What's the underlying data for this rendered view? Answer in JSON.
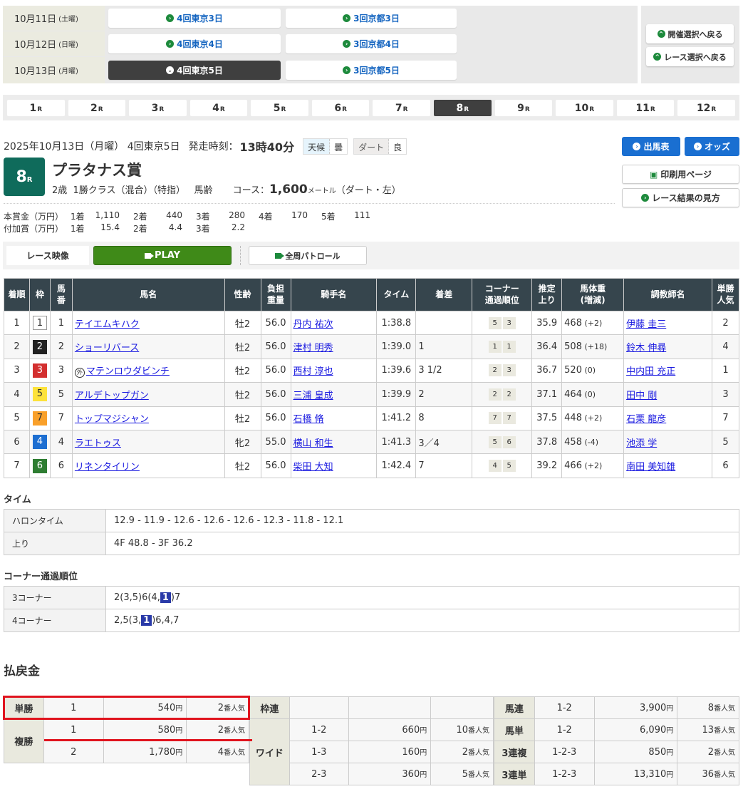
{
  "kaisai": {
    "rows": [
      {
        "date": "10月11日",
        "dow": "(土曜)",
        "venues": [
          "4回東京3日",
          "3回京都3日"
        ],
        "active": -1
      },
      {
        "date": "10月12日",
        "dow": "(日曜)",
        "venues": [
          "4回東京4日",
          "3回京都4日"
        ],
        "active": -1
      },
      {
        "date": "10月13日",
        "dow": "(月曜)",
        "venues": [
          "4回東京5日",
          "3回京都5日"
        ],
        "active": 0
      }
    ],
    "back_kaisai": "開催選択へ戻る",
    "back_race": "レース選択へ戻る"
  },
  "race_tabs": {
    "items": [
      "1",
      "2",
      "3",
      "4",
      "5",
      "6",
      "7",
      "8",
      "9",
      "10",
      "11",
      "12"
    ],
    "suffix": "R",
    "active": "8"
  },
  "race": {
    "date": "2025年10月13日（月曜） 4回東京5日",
    "start_label": "発走時刻：",
    "start_time": "13時40分",
    "weather_label": "天候",
    "weather": "曇",
    "surface_label": "ダート",
    "condition": "良",
    "number": "8",
    "number_suffix": "R",
    "name": "プラタナス賞",
    "conditions": "2歳  1勝クラス（混合）（特指）   馬齢",
    "course_label": "コース：",
    "distance": "1,600",
    "distance_unit": "メートル",
    "course_detail": "（ダート・左）",
    "prize_main": {
      "label": "本賞金（万円）",
      "items": [
        [
          "1着",
          "1,110"
        ],
        [
          "2着",
          "440"
        ],
        [
          "3着",
          "280"
        ],
        [
          "4着",
          "170"
        ],
        [
          "5着",
          "111"
        ]
      ]
    },
    "prize_add": {
      "label": "付加賞（万円）",
      "items": [
        [
          "1着",
          "15.4"
        ],
        [
          "2着",
          "4.4"
        ],
        [
          "3着",
          "2.2"
        ]
      ]
    }
  },
  "side_buttons": {
    "entries": "出馬表",
    "odds": "オッズ",
    "print": "印刷用ページ",
    "howto": "レース結果の見方"
  },
  "video": {
    "label": "レース映像",
    "play": "PLAY",
    "patrol": "全周パトロール"
  },
  "colors": {
    "accent_green": "#0f6b5b",
    "blue": "#1a6fd1",
    "play_green": "#3f8a18",
    "header": "#36454d",
    "highlight": "#e0141e"
  },
  "results": {
    "headers": [
      "着順",
      "枠",
      "馬番",
      "馬名",
      "性齢",
      "負担重量",
      "騎手名",
      "タイム",
      "着差",
      "コーナー通過順位",
      "推定上り",
      "馬体重(増減)",
      "調教師名",
      "単勝人気"
    ],
    "rows": [
      {
        "rank": "1",
        "waku": "1",
        "num": "1",
        "horse": "テイエムキハク",
        "foreign": "",
        "sexage": "牡2",
        "weight": "56.0",
        "jockey": "丹内 祐次",
        "time": "1:38.8",
        "margin": "",
        "corner": [
          "5",
          "3"
        ],
        "last3f": "35.9",
        "body": "468",
        "diff": "(+2)",
        "trainer": "伊藤 圭三",
        "pop": "2"
      },
      {
        "rank": "2",
        "waku": "2",
        "num": "2",
        "horse": "ショーリバース",
        "foreign": "",
        "sexage": "牡2",
        "weight": "56.0",
        "jockey": "津村 明秀",
        "time": "1:39.0",
        "margin": "1",
        "corner": [
          "1",
          "1"
        ],
        "last3f": "36.4",
        "body": "508",
        "diff": "(+18)",
        "trainer": "鈴木 伸尋",
        "pop": "4"
      },
      {
        "rank": "3",
        "waku": "3",
        "num": "3",
        "horse": "マテンロウダビンチ",
        "foreign": "外",
        "sexage": "牡2",
        "weight": "56.0",
        "jockey": "西村 淳也",
        "time": "1:39.6",
        "margin": "3 1/2",
        "corner": [
          "2",
          "3"
        ],
        "last3f": "36.7",
        "body": "520",
        "diff": "(0)",
        "trainer": "中内田 充正",
        "pop": "1"
      },
      {
        "rank": "4",
        "waku": "5",
        "num": "5",
        "horse": "アルデトップガン",
        "foreign": "",
        "sexage": "牡2",
        "weight": "56.0",
        "jockey": "三浦 皇成",
        "time": "1:39.9",
        "margin": "2",
        "corner": [
          "2",
          "2"
        ],
        "last3f": "37.1",
        "body": "464",
        "diff": "(0)",
        "trainer": "田中 剛",
        "pop": "3"
      },
      {
        "rank": "5",
        "waku": "7",
        "num": "7",
        "horse": "トップマジシャン",
        "foreign": "",
        "sexage": "牡2",
        "weight": "56.0",
        "jockey": "石橋 脩",
        "time": "1:41.2",
        "margin": "8",
        "corner": [
          "7",
          "7"
        ],
        "last3f": "37.5",
        "body": "448",
        "diff": "(+2)",
        "trainer": "石栗 龍彦",
        "pop": "7"
      },
      {
        "rank": "6",
        "waku": "4",
        "num": "4",
        "horse": "ラエトゥス",
        "foreign": "",
        "sexage": "牝2",
        "weight": "55.0",
        "jockey": "横山 和生",
        "time": "1:41.3",
        "margin": "3／4",
        "corner": [
          "5",
          "6"
        ],
        "last3f": "37.8",
        "body": "458",
        "diff": "(-4)",
        "trainer": "池添 学",
        "pop": "5"
      },
      {
        "rank": "7",
        "waku": "6",
        "num": "6",
        "horse": "リネンタイリン",
        "foreign": "",
        "sexage": "牡2",
        "weight": "56.0",
        "jockey": "柴田 大知",
        "time": "1:42.4",
        "margin": "7",
        "corner": [
          "4",
          "5"
        ],
        "last3f": "39.2",
        "body": "466",
        "diff": "(+2)",
        "trainer": "南田 美知雄",
        "pop": "6"
      }
    ],
    "waku_colors": {
      "1": [
        "#ffffff",
        "#333333"
      ],
      "2": [
        "#222222",
        "#ffffff"
      ],
      "3": [
        "#d32f2f",
        "#ffffff"
      ],
      "4": [
        "#1e6fd1",
        "#ffffff"
      ],
      "5": [
        "#fde23a",
        "#333333"
      ],
      "6": [
        "#2e7d32",
        "#ffffff"
      ],
      "7": [
        "#f9a02a",
        "#333333"
      ]
    }
  },
  "time_section": {
    "title": "タイム",
    "rows": [
      {
        "label": "ハロンタイム",
        "value": "12.9 - 11.9 - 12.6 - 12.6 - 12.6 - 12.3 - 11.8 - 12.1"
      },
      {
        "label": "上り",
        "value": "4F 48.8 - 3F 36.2"
      }
    ]
  },
  "corner_section": {
    "title": "コーナー通過順位",
    "rows": [
      {
        "label": "3コーナー",
        "before": "2(3,5)6(4,",
        "hl": "1",
        "after": ")7"
      },
      {
        "label": "4コーナー",
        "before": "2,5(3,",
        "hl": "1",
        "after": ")6,4,7"
      }
    ]
  },
  "payout": {
    "title": "払戻金",
    "yen": "円",
    "pop_suffix": "番人気",
    "tansho": {
      "label": "単勝",
      "rows": [
        [
          "1",
          "540",
          "2"
        ]
      ]
    },
    "fukusho": {
      "label": "複勝",
      "rows": [
        [
          "1",
          "580",
          "2"
        ],
        [
          "2",
          "1,780",
          "4"
        ]
      ]
    },
    "wakuren": {
      "label": "枠連"
    },
    "wide": {
      "label": "ワイド",
      "rows": [
        [
          "1-2",
          "660",
          "10"
        ],
        [
          "1-3",
          "160",
          "2"
        ],
        [
          "2-3",
          "360",
          "5"
        ]
      ]
    },
    "right": [
      {
        "label": "馬連",
        "combo": "1-2",
        "amount": "3,900",
        "pop": "8"
      },
      {
        "label": "馬単",
        "combo": "1-2",
        "amount": "6,090",
        "pop": "13"
      },
      {
        "label": "3連複",
        "combo": "1-2-3",
        "amount": "850",
        "pop": "2"
      },
      {
        "label": "3連単",
        "combo": "1-2-3",
        "amount": "13,310",
        "pop": "36"
      }
    ]
  }
}
